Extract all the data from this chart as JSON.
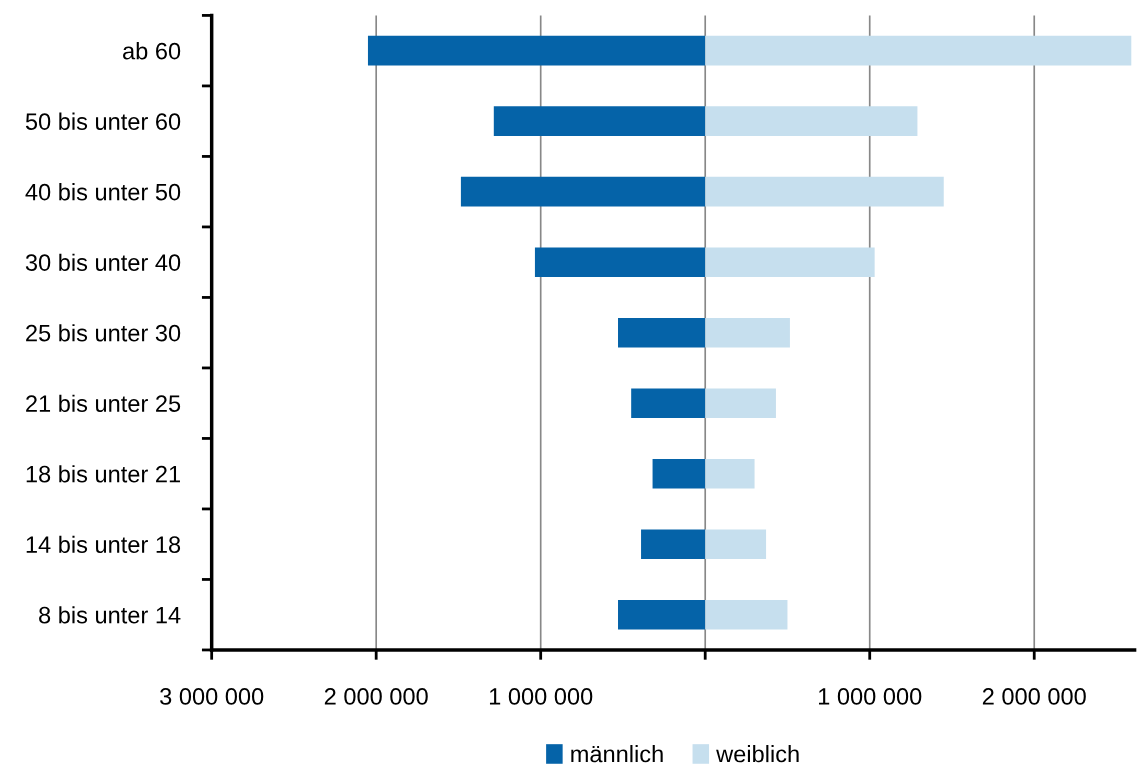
{
  "chart_data": {
    "type": "bar",
    "orientation": "horizontal",
    "categories": [
      "ab 60",
      "50 bis unter 60",
      "40 bis unter 50",
      "30 bis unter 40",
      "25 bis unter 30",
      "21 bis unter 25",
      "18 bis unter 21",
      "14 bis unter 18",
      "8 bis unter 14"
    ],
    "series": [
      {
        "name": "männlich",
        "color": "#0563a8",
        "values": [
          -2050000,
          -1285000,
          -1485000,
          -1035000,
          -530000,
          -450000,
          -320000,
          -390000,
          -530000
        ]
      },
      {
        "name": "weiblich",
        "color": "#c6dfee",
        "values": [
          2590000,
          1290000,
          1450000,
          1030000,
          515000,
          430000,
          300000,
          370000,
          500000
        ]
      }
    ],
    "xlim": [
      -3000000,
      2610000
    ],
    "xticks": [
      {
        "value": -3000000,
        "label": "3 000 000"
      },
      {
        "value": -2000000,
        "label": "2 000 000"
      },
      {
        "value": -1000000,
        "label": "1 000 000"
      },
      {
        "value": 0,
        "label": null
      },
      {
        "value": 1000000,
        "label": "1 000 000"
      },
      {
        "value": 2000000,
        "label": "2 000 000"
      }
    ],
    "stacked": true,
    "grid": "x",
    "legend": "bottom"
  }
}
